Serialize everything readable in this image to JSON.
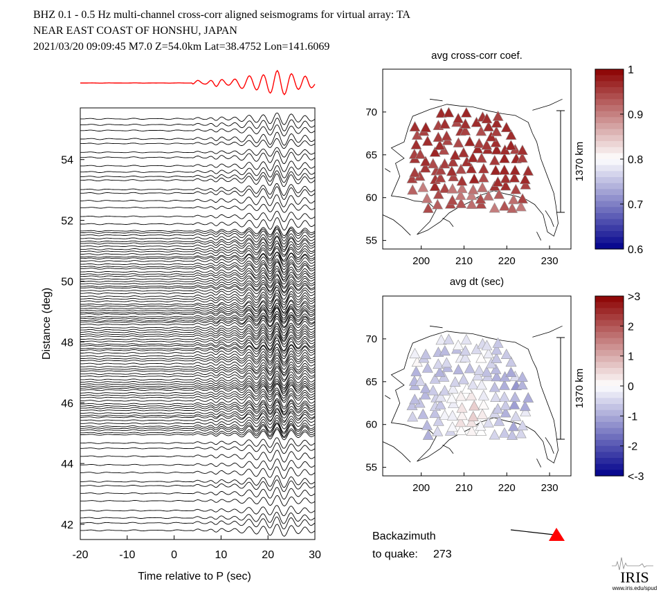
{
  "header": {
    "line1": "BHZ  0.1 - 0.5 Hz  multi-channel cross-corr aligned seismograms for virtual array: TA",
    "line2": "NEAR EAST COAST OF HONSHU, JAPAN",
    "line3": "2021/03/20  09:09:45  M7.0  Z=54.0km Lat=38.4752 Lon=141.6069"
  },
  "colors": {
    "stack_trace": "#ff0000",
    "traces": "#000000",
    "backazimuth_marker": "#ff0000",
    "cmap_low": "#00008b",
    "cmap_mid": "#ffffff",
    "cmap_high": "#8b0000"
  },
  "backazimuth": {
    "label1": "Backazimuth",
    "label2": "to quake:",
    "value": "273"
  },
  "logo": {
    "text": "IRIS",
    "url": "www.iris.edu/spud"
  },
  "chart_data": [
    {
      "type": "line",
      "id": "seismograms",
      "xlabel": "Time relative to P (sec)",
      "ylabel": "Distance (deg)",
      "xlim": [
        -20,
        30
      ],
      "ylim": [
        41.5,
        55.7
      ],
      "xticks": [
        -20,
        -10,
        0,
        10,
        20,
        30
      ],
      "yticks": [
        42,
        44,
        46,
        48,
        50,
        52,
        54
      ],
      "series_note": "approx. 300 aligned vertical-component traces stacked by epicentral distance, plus a red stacked trace above",
      "arrival_features_sec": [
        5,
        8,
        10,
        13,
        16,
        19,
        22,
        25,
        28
      ]
    },
    {
      "type": "scatter",
      "id": "map-cc",
      "title": "avg cross-corr coef.",
      "xlabel": "",
      "ylabel": "",
      "xlim": [
        191,
        235
      ],
      "ylim": [
        54,
        75
      ],
      "xticks": [
        200,
        210,
        220,
        230
      ],
      "yticks": [
        55,
        60,
        65,
        70
      ],
      "scalebar_label": "1370 km",
      "colorbar": {
        "min": 0.6,
        "max": 1,
        "ticks": [
          "1",
          "0.9",
          "0.8",
          "0.7",
          "0.6"
        ]
      },
      "marker": "triangle",
      "note": "most stations dark red (0.9-1.0); southern stations lighter; one blue station near 216.5, 65.3"
    },
    {
      "type": "scatter",
      "id": "map-dt",
      "title": "avg dt (sec)",
      "xlabel": "",
      "ylabel": "",
      "xlim": [
        191,
        235
      ],
      "ylim": [
        54,
        75
      ],
      "xticks": [
        200,
        210,
        220,
        230
      ],
      "yticks": [
        55,
        60,
        65,
        70
      ],
      "scalebar_label": "1370 km",
      "colorbar": {
        "min": -3,
        "max": 3,
        "ticks": [
          ">3",
          "2",
          "1",
          "0",
          "-1",
          "-2",
          "<-3"
        ]
      },
      "marker": "triangle",
      "note": "positive (red) dt concentrated in central-southern Alaska; negative (blue) in northern/eastern stations"
    }
  ]
}
